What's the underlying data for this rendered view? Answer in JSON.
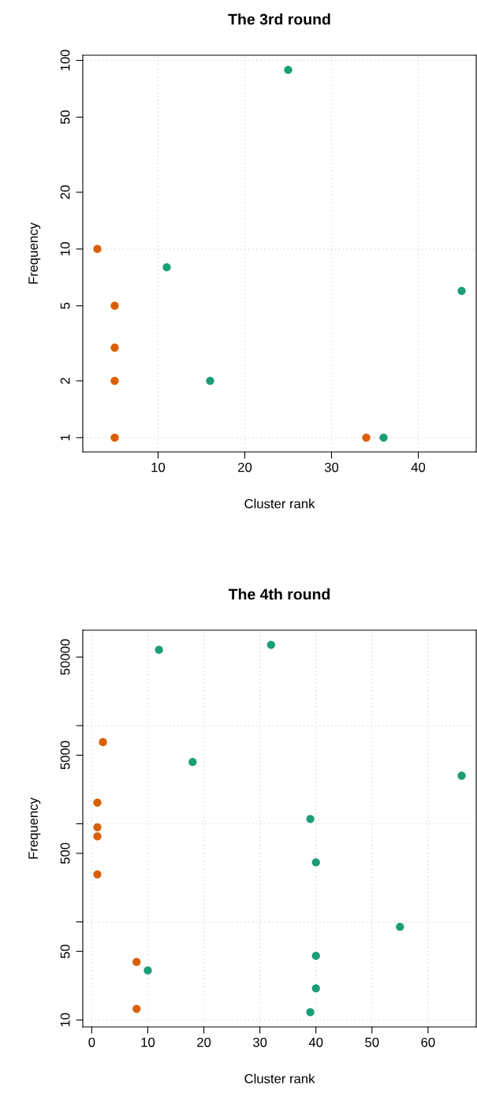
{
  "chart_data": [
    {
      "type": "scatter",
      "title": "The 3rd round",
      "xlabel": "Cluster rank",
      "ylabel": "Frequency",
      "log": "y",
      "grid": true,
      "marker": "circle",
      "xlim": [
        1.32,
        46.68
      ],
      "xticks": [
        10,
        20,
        30,
        40
      ],
      "ylim": [
        0.84,
        106.5
      ],
      "yticks": [
        1,
        2,
        5,
        10,
        20,
        50,
        100
      ],
      "series": [
        {
          "color": "#d95f02",
          "x": [
            3,
            5,
            5,
            5,
            5,
            34
          ],
          "values": [
            10,
            5,
            3,
            2,
            1,
            1
          ]
        },
        {
          "color": "#1b9e77",
          "x": [
            11,
            16,
            25,
            36,
            45
          ],
          "values": [
            8,
            2,
            89,
            1,
            6
          ]
        }
      ]
    },
    {
      "type": "scatter",
      "title": "The 4th round",
      "xlabel": "Cluster rank",
      "ylabel": "Frequency",
      "log": "y",
      "grid": true,
      "marker": "circle",
      "xlim": [
        -1.6,
        68.6
      ],
      "xticks": [
        0,
        10,
        20,
        30,
        40,
        50,
        60
      ],
      "ylim": [
        8.5,
        94000
      ],
      "yticks": [
        10,
        50,
        {
          "value": 100,
          "label": null
        },
        500,
        {
          "value": 1000,
          "label": null
        },
        5000,
        {
          "value": 10000,
          "label": null
        },
        50000
      ],
      "series": [
        {
          "color": "#d95f02",
          "x": [
            2,
            1,
            1,
            1,
            1,
            8,
            8
          ],
          "values": [
            6800,
            1640,
            920,
            745,
            305,
            39,
            13
          ]
        },
        {
          "color": "#1b9e77",
          "x": [
            12,
            32,
            18,
            66,
            39,
            40,
            55,
            40,
            10,
            40,
            39
          ],
          "values": [
            59400,
            66500,
            4260,
            3090,
            1120,
            404,
            89,
            45,
            32,
            21,
            12
          ]
        }
      ]
    }
  ]
}
